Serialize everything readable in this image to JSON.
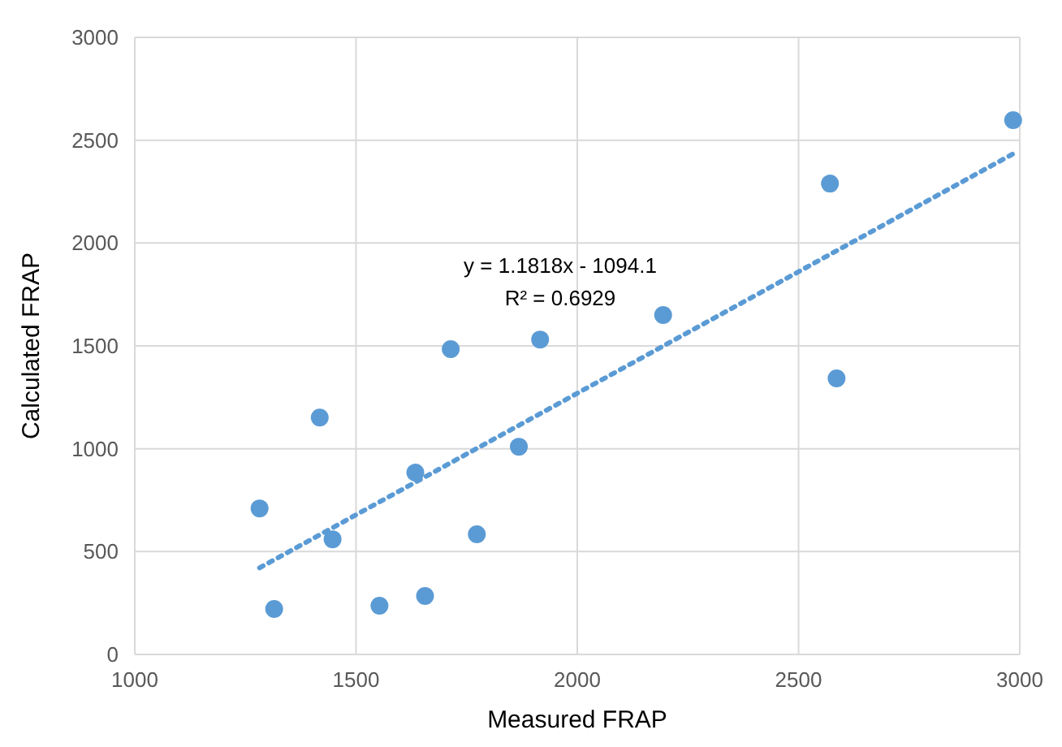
{
  "chart_data": {
    "type": "scatter",
    "xlabel": "Measured FRAP",
    "ylabel": "Calculated FRAP",
    "xlim": [
      1000,
      3000
    ],
    "xticks": [
      1000,
      1500,
      2000,
      2500,
      3000
    ],
    "ylim": [
      0,
      3000
    ],
    "yticks": [
      0,
      500,
      1000,
      1500,
      2000,
      2500,
      3000
    ],
    "grid": true,
    "annotations": [
      "y = 1.1818x - 1094.1",
      "R² = 0.6929"
    ],
    "series": [
      {
        "color": "#5b9bd5",
        "marker": "circle",
        "x": [
          1282,
          1315,
          1418,
          1447,
          1553,
          1634,
          1656,
          1714,
          1773,
          1868,
          1916,
          2194,
          2571,
          2586,
          2985
        ],
        "values": [
          710,
          221,
          1152,
          560,
          237,
          884,
          284,
          1484,
          584,
          1010,
          1531,
          1650,
          2289,
          1342,
          2597
        ]
      },
      {
        "type": "line",
        "color": "#5b9bd5",
        "line_style": "dotted",
        "x": [
          1282,
          2985
        ],
        "values": [
          421,
          2434
        ]
      }
    ]
  }
}
